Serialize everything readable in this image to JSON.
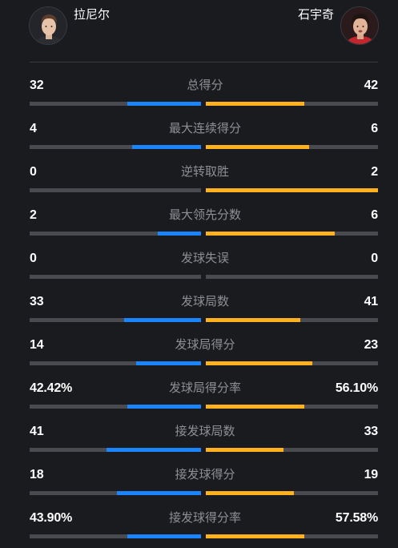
{
  "players": {
    "left": {
      "name": "拉尼尔",
      "avatar_icon": "player-photo-icon"
    },
    "right": {
      "name": "石宇奇",
      "avatar_icon": "player-photo-icon"
    }
  },
  "colors": {
    "background": "#1a1b1f",
    "left_bar": "#1a85ff",
    "right_bar": "#ffb11e",
    "track": "#4a4b50"
  },
  "stats": [
    {
      "label": "总得分",
      "left": "32",
      "right": "42",
      "left_share": 0.43,
      "right_share": 0.57
    },
    {
      "label": "最大连续得分",
      "left": "4",
      "right": "6",
      "left_share": 0.4,
      "right_share": 0.6
    },
    {
      "label": "逆转取胜",
      "left": "0",
      "right": "2",
      "left_share": 0.0,
      "right_share": 1.0
    },
    {
      "label": "最大领先分数",
      "left": "2",
      "right": "6",
      "left_share": 0.25,
      "right_share": 0.75
    },
    {
      "label": "发球失误",
      "left": "0",
      "right": "0",
      "left_share": 0.0,
      "right_share": 0.0
    },
    {
      "label": "发球局数",
      "left": "33",
      "right": "41",
      "left_share": 0.45,
      "right_share": 0.55
    },
    {
      "label": "发球局得分",
      "left": "14",
      "right": "23",
      "left_share": 0.38,
      "right_share": 0.62
    },
    {
      "label": "发球局得分率",
      "left": "42.42%",
      "right": "56.10%",
      "left_share": 0.43,
      "right_share": 0.57
    },
    {
      "label": "接发球局数",
      "left": "41",
      "right": "33",
      "left_share": 0.55,
      "right_share": 0.45
    },
    {
      "label": "接发球得分",
      "left": "18",
      "right": "19",
      "left_share": 0.49,
      "right_share": 0.51
    },
    {
      "label": "接发球得分率",
      "left": "43.90%",
      "right": "57.58%",
      "left_share": 0.43,
      "right_share": 0.57
    }
  ]
}
